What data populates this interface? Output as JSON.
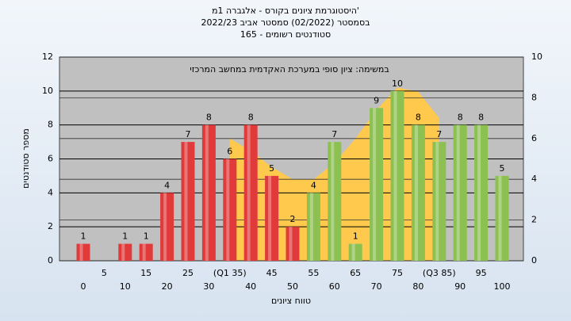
{
  "chart_data": {
    "type": "bar",
    "title": [
      "'היסטוגרמת ציונים בקורס - אלגברה 1מ",
      "בסמסטר (02/2022) סמסטר אביב 2022/23",
      "סטודנטים רשומים - 165"
    ],
    "annotation": "במשימה: ציון סופי במערכת האקדמית במחשב המרכזי",
    "xlabel": "טווח ציונים",
    "ylabel": "מספר סטודנטים",
    "categories": [
      "0",
      "5",
      "10",
      "15",
      "20",
      "25",
      "30",
      "(Q1 35)",
      "40",
      "45",
      "50",
      "55",
      "60",
      "65",
      "70",
      "75",
      "80",
      "(Q3 85)",
      "90",
      "95",
      "100"
    ],
    "values": [
      1,
      0,
      1,
      1,
      4,
      7,
      8,
      6,
      8,
      5,
      2,
      4,
      7,
      1,
      9,
      10,
      8,
      7,
      8,
      8,
      5
    ],
    "bar_colors": [
      "#e03a3a",
      "#e03a3a",
      "#e03a3a",
      "#e03a3a",
      "#e03a3a",
      "#e03a3a",
      "#e03a3a",
      "#e03a3a",
      "#e03a3a",
      "#e03a3a",
      "#e03a3a",
      "#8cc152",
      "#8cc152",
      "#8cc152",
      "#8cc152",
      "#8cc152",
      "#8cc152",
      "#8cc152",
      "#8cc152",
      "#8cc152",
      "#8cc152"
    ],
    "area": {
      "axis": "y2",
      "color": "#ffc94d",
      "values": [
        null,
        null,
        null,
        null,
        null,
        null,
        null,
        6.0,
        5.4,
        4.6,
        4.0,
        4.0,
        4.8,
        6.0,
        7.4,
        8.5,
        8.3,
        7.0,
        null,
        null,
        null
      ]
    },
    "ylim": [
      0,
      12
    ],
    "yticks": [
      0,
      2,
      4,
      6,
      8,
      10,
      12
    ],
    "y2lim": [
      0,
      10
    ],
    "y2ticks": [
      0,
      2,
      4,
      6,
      8,
      10
    ],
    "grid": true
  }
}
